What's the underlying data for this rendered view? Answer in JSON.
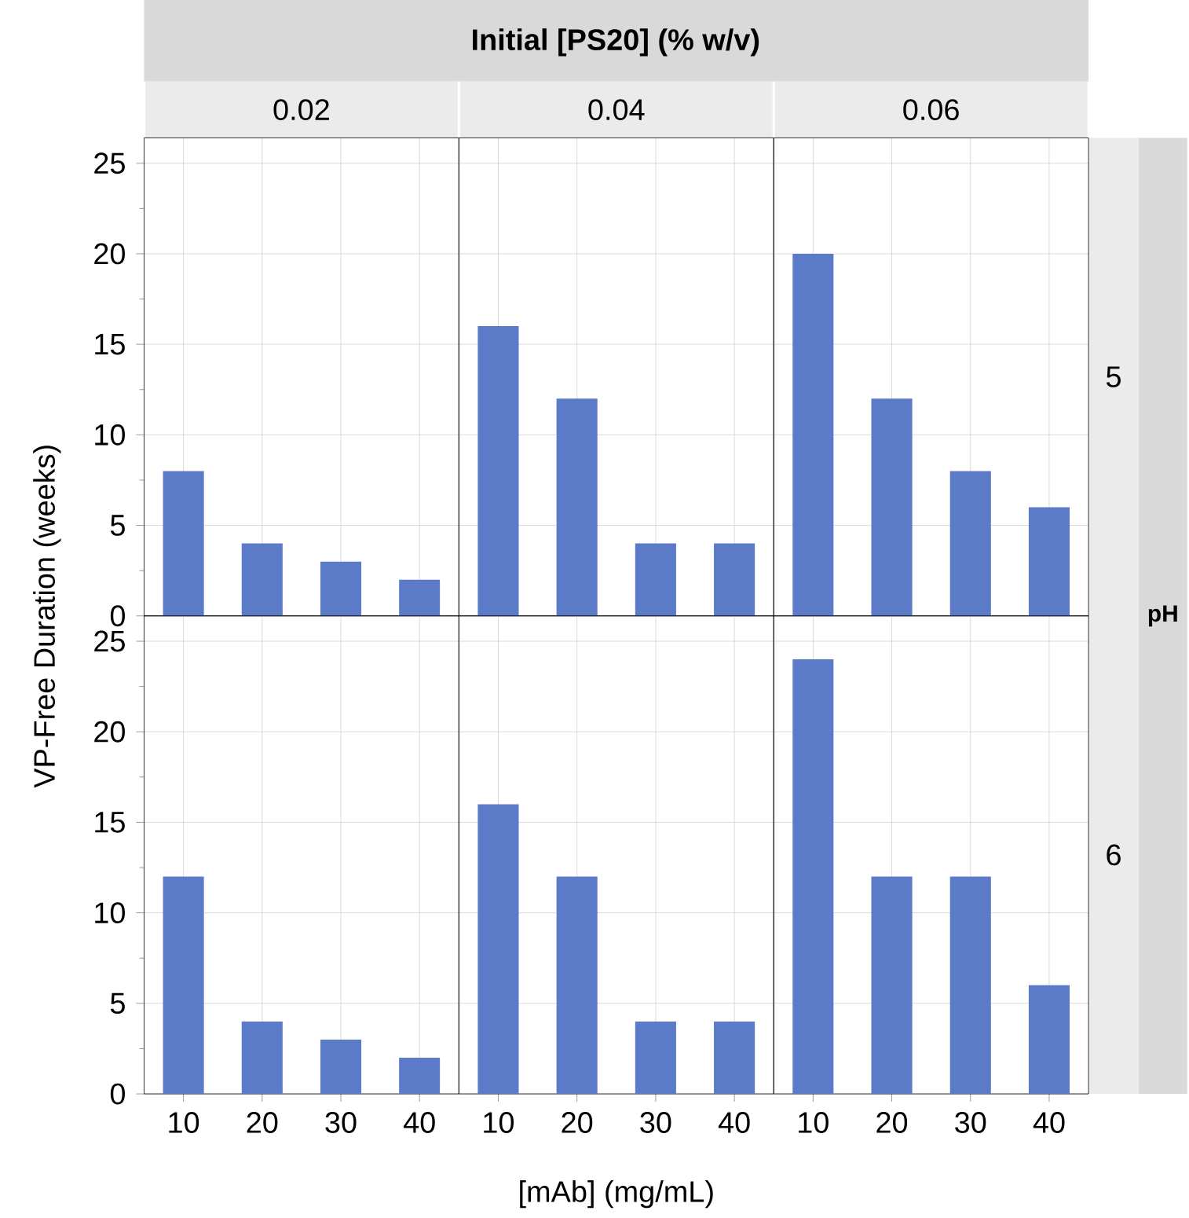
{
  "chart_data": [
    {
      "type": "bar",
      "title": "0.02",
      "ylabel": "VP-Free Duration (weeks)",
      "annotations": [
        "Initial [PS20] (% w/v)",
        "pH"
      ],
      "categories": [
        "10",
        "20",
        "30",
        "40"
      ],
      "values": [
        8,
        4,
        3,
        2
      ],
      "color": "#5b7bc8",
      "ylim": [
        0,
        26.4
      ],
      "yticks": [
        0,
        5,
        10,
        15,
        20,
        25
      ],
      "grid": true,
      "tick_labels": "y"
    },
    {
      "type": "bar",
      "title": "0.04",
      "categories": [
        "10",
        "20",
        "30",
        "40"
      ],
      "values": [
        16,
        12,
        4,
        4
      ],
      "color": "#5b7bc8",
      "ylim": [
        0,
        26.4
      ],
      "yticks": [
        0,
        5,
        10,
        15,
        20,
        25
      ],
      "grid": true,
      "tick_labels": false
    },
    {
      "type": "bar",
      "title": "0.06",
      "annotations": [
        "5"
      ],
      "categories": [
        "10",
        "20",
        "30",
        "40"
      ],
      "values": [
        20,
        12,
        8,
        6
      ],
      "color": "#5b7bc8",
      "ylim": [
        0,
        26.4
      ],
      "yticks": [
        0,
        5,
        10,
        15,
        20,
        25
      ],
      "grid": true,
      "tick_labels": false
    },
    {
      "type": "bar",
      "categories": [
        "10",
        "20",
        "30",
        "40"
      ],
      "values": [
        12,
        4,
        3,
        2
      ],
      "color": "#5b7bc8",
      "ylim": [
        0,
        26.4
      ],
      "yticks": [
        0,
        5,
        10,
        15,
        20,
        25
      ],
      "grid": true
    },
    {
      "type": "bar",
      "xlabel": "[mAb] (mg/mL)",
      "categories": [
        "10",
        "20",
        "30",
        "40"
      ],
      "values": [
        16,
        12,
        4,
        4
      ],
      "color": "#5b7bc8",
      "ylim": [
        0,
        26.4
      ],
      "yticks": [
        0,
        5,
        10,
        15,
        20,
        25
      ],
      "grid": true,
      "tick_labels": "x"
    },
    {
      "type": "bar",
      "annotations": [
        "6"
      ],
      "categories": [
        "10",
        "20",
        "30",
        "40"
      ],
      "values": [
        24,
        12,
        12,
        6
      ],
      "color": "#5b7bc8",
      "ylim": [
        0,
        26.4
      ],
      "yticks": [
        0,
        5,
        10,
        15,
        20,
        25
      ],
      "grid": true,
      "tick_labels": "x"
    }
  ]
}
